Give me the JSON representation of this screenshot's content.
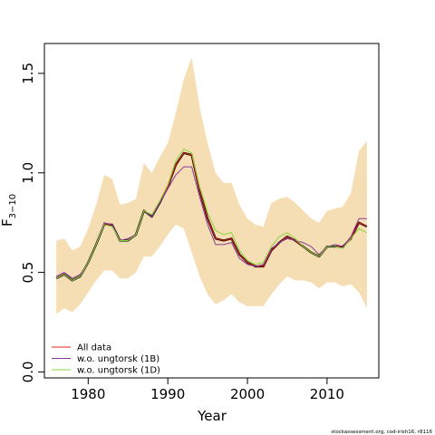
{
  "chart_data": {
    "type": "line",
    "xlabel": "Year",
    "ylabel": "F",
    "ylabel_sub": "3−10",
    "xlim": [
      1974.5,
      2016.5
    ],
    "ylim": [
      -0.03,
      1.65
    ],
    "xticks": [
      1980,
      1990,
      2000,
      2010
    ],
    "xtick_labels": [
      "1980",
      "1990",
      "2000",
      "2010"
    ],
    "yticks": [
      0.0,
      0.5,
      1.0,
      1.5
    ],
    "ytick_labels": [
      "0.0",
      "0.5",
      "1.0",
      "1.5"
    ],
    "grid": false,
    "legend_position": "bottom-left",
    "x": [
      1976,
      1977,
      1978,
      1979,
      1980,
      1981,
      1982,
      1983,
      1984,
      1985,
      1986,
      1987,
      1988,
      1989,
      1990,
      1991,
      1992,
      1993,
      1994,
      1995,
      1996,
      1997,
      1998,
      1999,
      2000,
      2001,
      2002,
      2003,
      2004,
      2005,
      2006,
      2007,
      2008,
      2009,
      2010,
      2011,
      2012,
      2013,
      2014,
      2015
    ],
    "confidence_band": {
      "color": "#F5DEB3",
      "upper": [
        0.66,
        0.67,
        0.61,
        0.63,
        0.72,
        0.84,
        0.99,
        0.97,
        0.84,
        0.85,
        0.87,
        1.05,
        1.0,
        1.08,
        1.15,
        1.3,
        1.47,
        1.58,
        1.33,
        1.15,
        1.0,
        0.95,
        0.95,
        0.84,
        0.77,
        0.74,
        0.73,
        0.85,
        0.87,
        0.88,
        0.85,
        0.81,
        0.77,
        0.75,
        0.81,
        0.82,
        0.83,
        0.9,
        1.11,
        1.16
      ],
      "lower": [
        0.29,
        0.32,
        0.3,
        0.34,
        0.4,
        0.46,
        0.51,
        0.51,
        0.47,
        0.47,
        0.5,
        0.58,
        0.58,
        0.63,
        0.69,
        0.74,
        0.72,
        0.6,
        0.48,
        0.39,
        0.34,
        0.36,
        0.39,
        0.35,
        0.33,
        0.33,
        0.33,
        0.39,
        0.44,
        0.48,
        0.46,
        0.46,
        0.45,
        0.42,
        0.45,
        0.45,
        0.43,
        0.44,
        0.4,
        0.32
      ]
    },
    "series": [
      {
        "name": "",
        "color": "#000000",
        "width": 2.2,
        "values": [
          0.47,
          0.49,
          0.46,
          0.48,
          0.55,
          0.64,
          0.74,
          0.74,
          0.66,
          0.66,
          0.69,
          0.81,
          0.78,
          0.85,
          0.93,
          1.04,
          1.1,
          1.09,
          0.91,
          0.77,
          0.67,
          0.66,
          0.67,
          0.59,
          0.55,
          0.53,
          0.53,
          0.61,
          0.65,
          0.68,
          0.66,
          0.63,
          0.6,
          0.58,
          0.63,
          0.63,
          0.63,
          0.67,
          0.75,
          0.73
        ]
      },
      {
        "name": "All data",
        "color": "#E8251B",
        "width": 1,
        "values": [
          0.47,
          0.49,
          0.46,
          0.48,
          0.55,
          0.64,
          0.74,
          0.74,
          0.66,
          0.66,
          0.69,
          0.81,
          0.78,
          0.85,
          0.93,
          1.04,
          1.1,
          1.09,
          0.91,
          0.77,
          0.67,
          0.66,
          0.67,
          0.59,
          0.55,
          0.53,
          0.53,
          0.61,
          0.65,
          0.68,
          0.66,
          0.63,
          0.6,
          0.58,
          0.63,
          0.63,
          0.63,
          0.67,
          0.75,
          0.73
        ]
      },
      {
        "name": "w.o. ungtorsk (1B)",
        "color": "#8B3A9B",
        "width": 1,
        "values": [
          0.48,
          0.5,
          0.47,
          0.49,
          0.55,
          0.64,
          0.75,
          0.74,
          0.66,
          0.67,
          0.69,
          0.81,
          0.78,
          0.85,
          0.92,
          0.99,
          1.03,
          1.03,
          0.88,
          0.74,
          0.64,
          0.64,
          0.65,
          0.57,
          0.54,
          0.53,
          0.54,
          0.62,
          0.65,
          0.67,
          0.66,
          0.65,
          0.63,
          0.59,
          0.63,
          0.64,
          0.63,
          0.68,
          0.77,
          0.77
        ]
      },
      {
        "name": "w.o. ungtorsk (1D)",
        "color": "#8BD43A",
        "width": 1,
        "values": [
          0.47,
          0.49,
          0.46,
          0.48,
          0.55,
          0.64,
          0.74,
          0.73,
          0.66,
          0.66,
          0.69,
          0.81,
          0.79,
          0.86,
          0.94,
          1.06,
          1.12,
          1.1,
          0.93,
          0.8,
          0.71,
          0.69,
          0.7,
          0.61,
          0.56,
          0.54,
          0.55,
          0.63,
          0.68,
          0.7,
          0.67,
          0.63,
          0.6,
          0.58,
          0.63,
          0.63,
          0.62,
          0.67,
          0.72,
          0.7
        ]
      }
    ]
  },
  "footer": "stockassessment.org, cod-irish16, r8116"
}
